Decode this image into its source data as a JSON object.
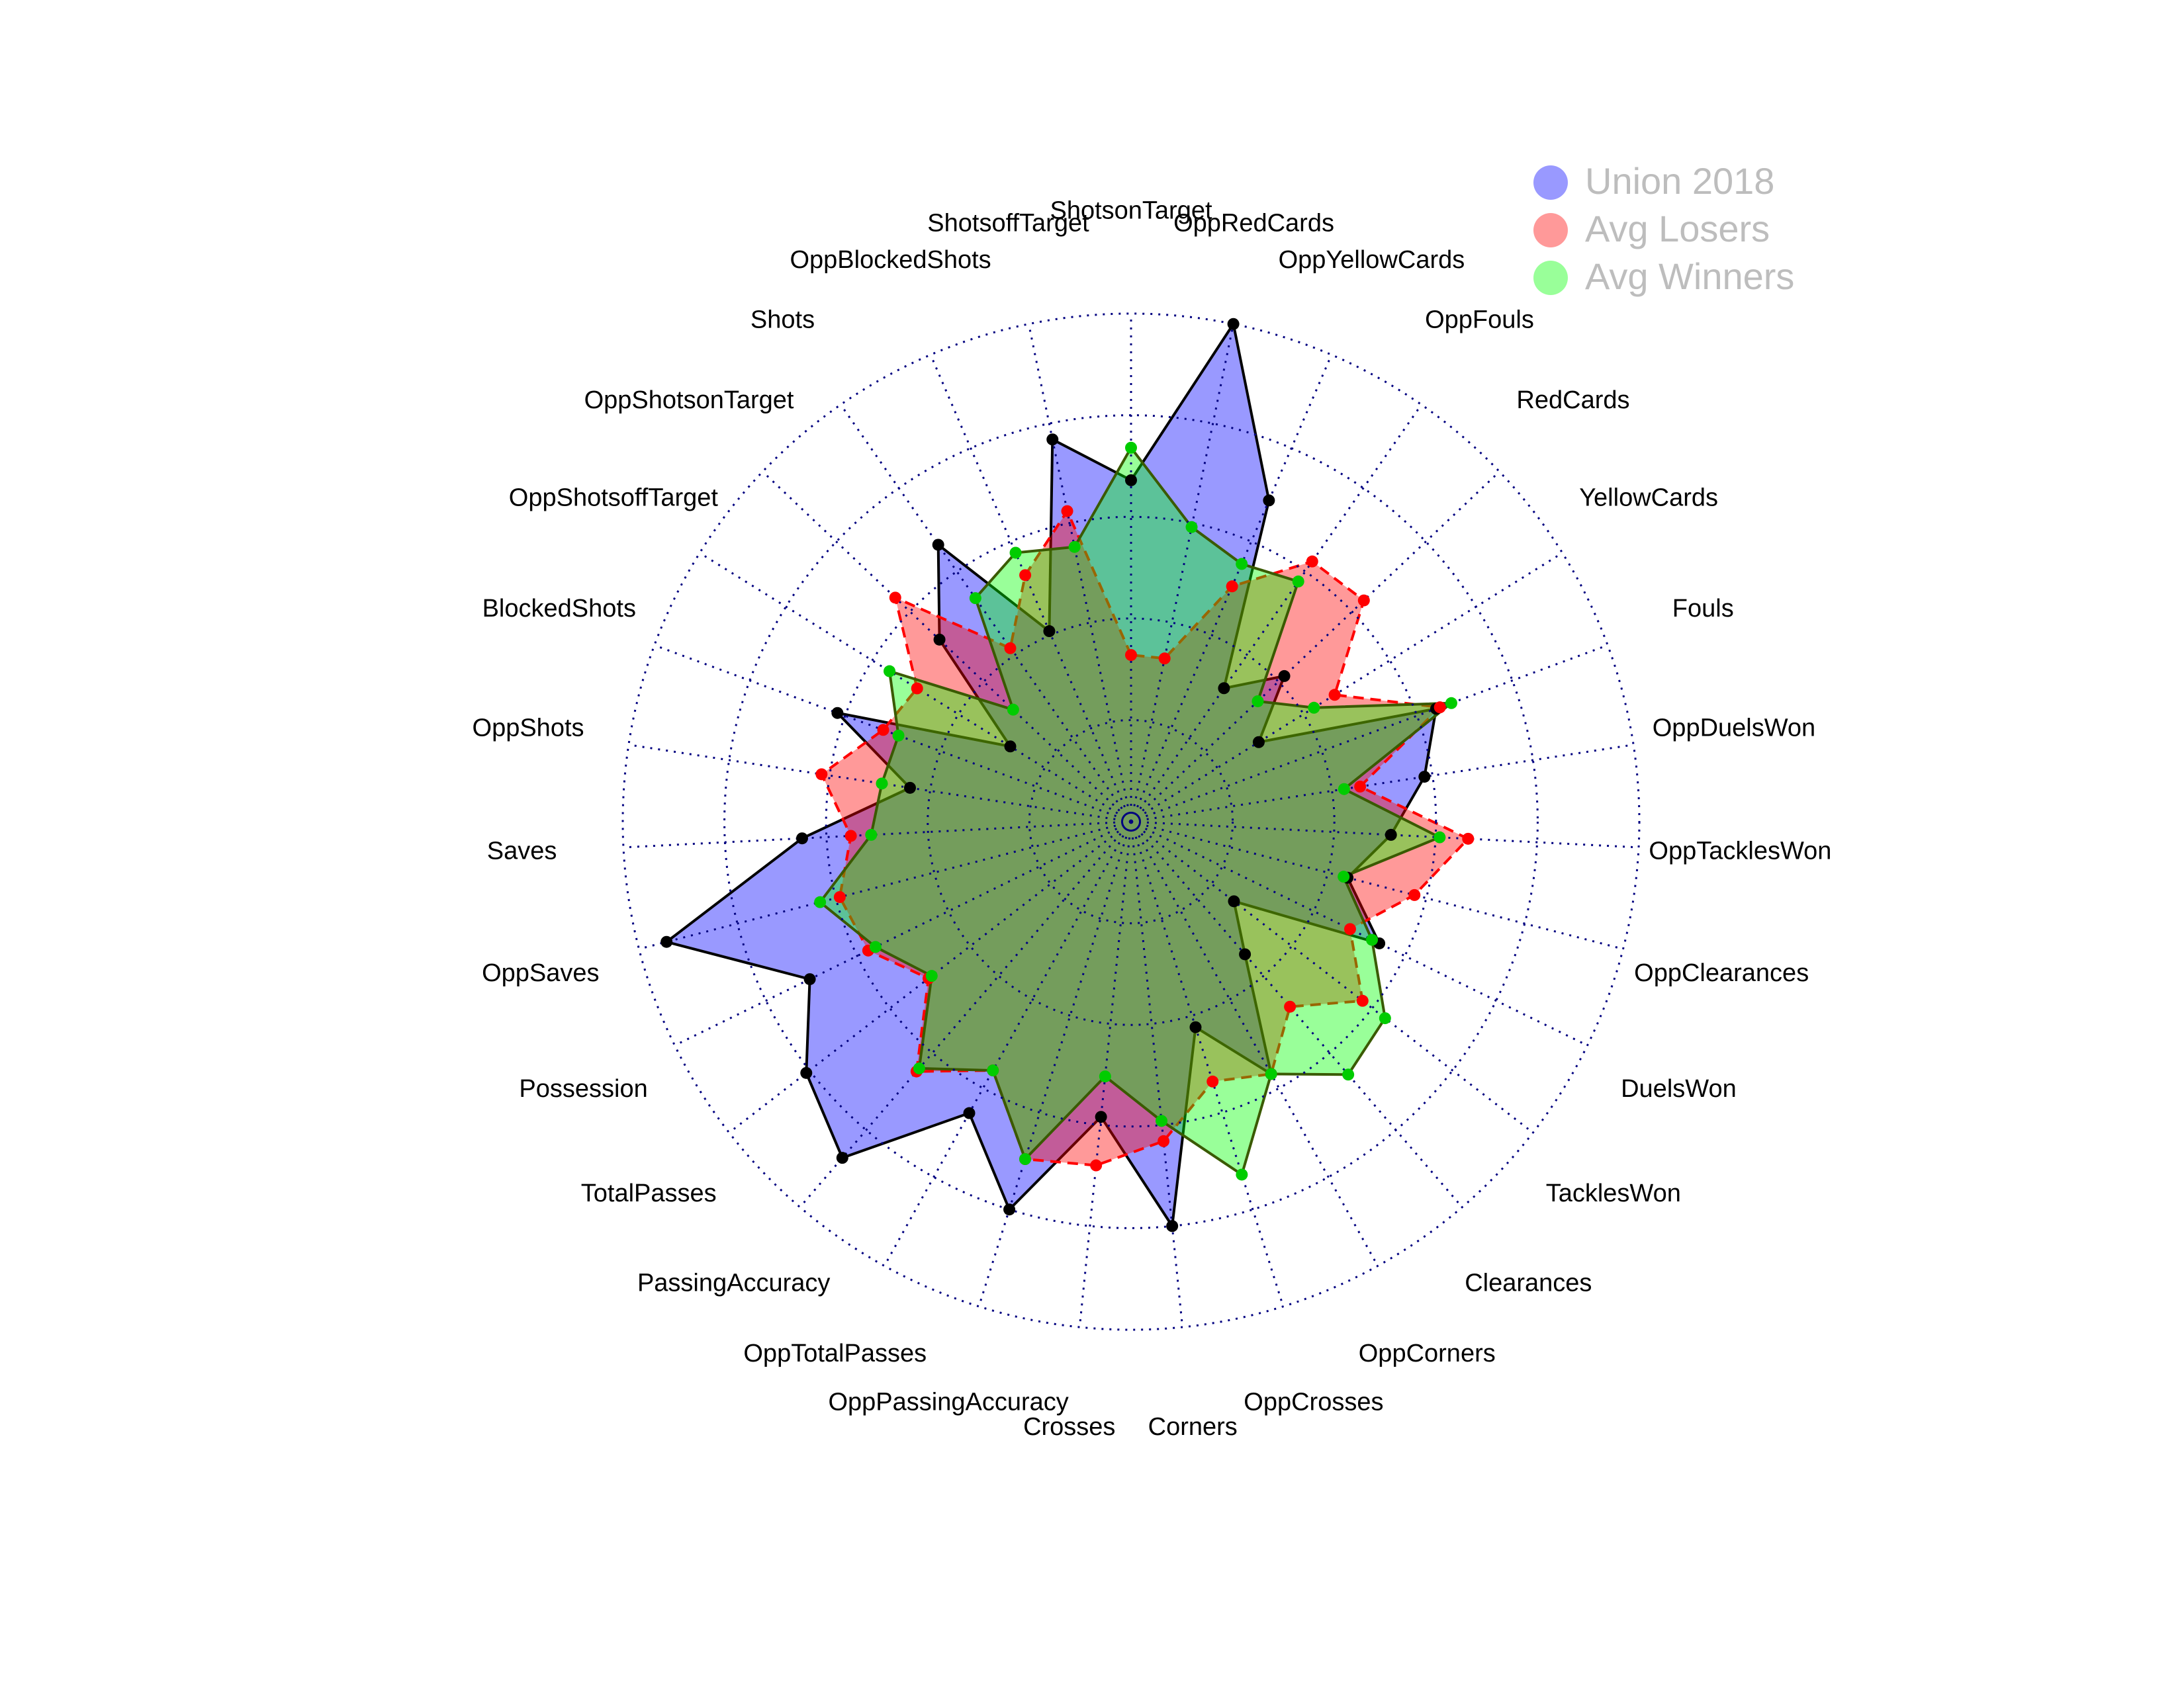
{
  "chart_data": {
    "type": "radar",
    "categories": [
      "ShotsonTarget",
      "ShotsoffTarget",
      "OppBlockedShots",
      "Shots",
      "OppShotsonTarget",
      "OppShotsoffTarget",
      "BlockedShots",
      "OppShots",
      "Saves",
      "OppSaves",
      "Possession",
      "TotalPasses",
      "PassingAccuracy",
      "OppTotalPasses",
      "OppPassingAccuracy",
      "Crosses",
      "Corners",
      "OppCrosses",
      "OppCorners",
      "Clearances",
      "TacklesWon",
      "DuelsWon",
      "OppClearances",
      "OppTacklesWon",
      "OppDuelsWon",
      "Fouls",
      "YellowCards",
      "RedCards",
      "OppFouls",
      "OppYellowCards",
      "OppRedCards"
    ],
    "series": [
      {
        "name": "Union 2018",
        "color": "#0000ff",
        "line_color": "#000000",
        "point_color": "#000000",
        "line_style": "solid",
        "values": [
          0.59,
          0.71,
          0.26,
          0.58,
          0.4,
          0.1,
          0.52,
          0.3,
          0.56,
          0.93,
          0.63,
          0.76,
          0.84,
          0.57,
          0.75,
          0.48,
          0.75,
          0.28,
          0.46,
          0.18,
          0.07,
          0.43,
          0.3,
          0.39,
          0.48,
          0.55,
          0.12,
          0.27,
          0.15,
          0.61,
          1.0
        ]
      },
      {
        "name": "Avg Losers",
        "color": "#ff0000",
        "line_color": "#ff0000",
        "point_color": "#ff0000",
        "line_style": "dashed",
        "values": [
          0.16,
          0.53,
          0.41,
          0.27,
          0.55,
          0.37,
          0.4,
          0.52,
          0.44,
          0.49,
          0.47,
          0.38,
          0.56,
          0.45,
          0.62,
          0.6,
          0.54,
          0.42,
          0.46,
          0.35,
          0.47,
          0.35,
          0.47,
          0.58,
          0.32,
          0.56,
          0.34,
          0.54,
          0.53,
          0.38,
          0.16
        ]
      },
      {
        "name": "Avg Winners",
        "color": "#00ff00",
        "line_color": "#3a5a00",
        "point_color": "#00cc00",
        "line_style": "solid",
        "values": [
          0.67,
          0.44,
          0.47,
          0.42,
          0.15,
          0.45,
          0.36,
          0.37,
          0.39,
          0.54,
          0.45,
          0.37,
          0.55,
          0.45,
          0.62,
          0.38,
          0.49,
          0.66,
          0.46,
          0.57,
          0.54,
          0.41,
          0.29,
          0.51,
          0.28,
          0.59,
          0.28,
          0.18,
          0.47,
          0.44,
          0.49
        ]
      }
    ],
    "rlim": [
      -0.25,
      1
    ],
    "rticks": [
      0,
      0.25,
      0.5,
      0.75,
      1
    ],
    "grid": true,
    "legend": "top-right"
  }
}
